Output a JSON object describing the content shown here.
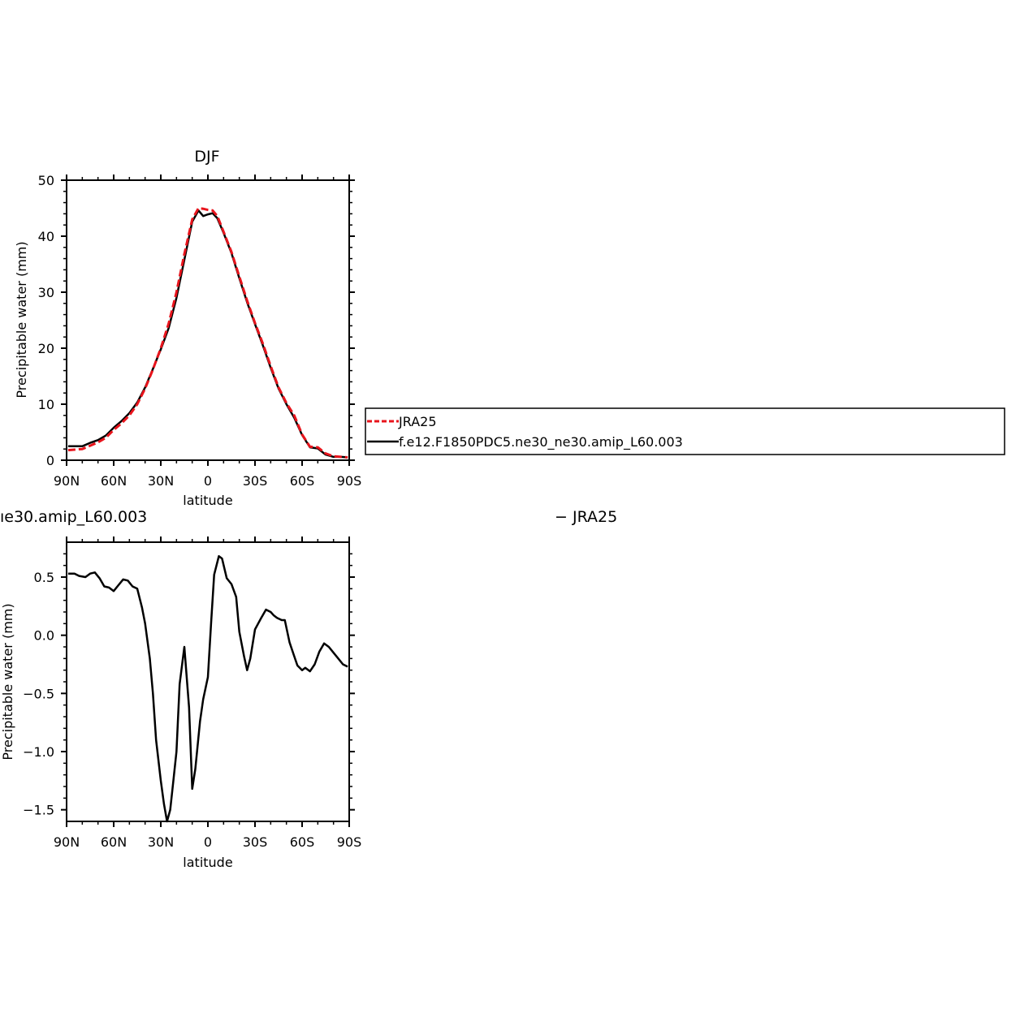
{
  "chart_data": [
    {
      "type": "line",
      "title": "DJF",
      "xlabel": "latitude",
      "ylabel": "Precipitable water (mm)",
      "xlim": [
        -90,
        90
      ],
      "ylim": [
        0,
        50
      ],
      "x_ticks": [
        {
          "value": -90,
          "label": "90N"
        },
        {
          "value": -60,
          "label": "60N"
        },
        {
          "value": -30,
          "label": "30N"
        },
        {
          "value": 0,
          "label": "0"
        },
        {
          "value": 30,
          "label": "30S"
        },
        {
          "value": 60,
          "label": "60S"
        },
        {
          "value": 90,
          "label": "90S"
        }
      ],
      "y_ticks": [
        {
          "value": 0,
          "label": "0"
        },
        {
          "value": 10,
          "label": "10"
        },
        {
          "value": 20,
          "label": "20"
        },
        {
          "value": 30,
          "label": "30"
        },
        {
          "value": 40,
          "label": "40"
        },
        {
          "value": 50,
          "label": "50"
        }
      ],
      "series": [
        {
          "name": "JRA25",
          "color": "#e8141c",
          "dash": true,
          "x": [
            -89,
            -80,
            -75,
            -70,
            -65,
            -60,
            -55,
            -50,
            -45,
            -40,
            -35,
            -30,
            -25,
            -20,
            -15,
            -10,
            -6,
            -3,
            0,
            3,
            6,
            10,
            15,
            20,
            25,
            30,
            35,
            40,
            45,
            50,
            55,
            60,
            65,
            70,
            75,
            80,
            85,
            89
          ],
          "y": [
            1.8,
            2.0,
            2.6,
            3.2,
            4.0,
            5.4,
            6.6,
            8.0,
            10.0,
            12.8,
            16.2,
            20.0,
            24.4,
            30.0,
            36.8,
            43.0,
            45.0,
            44.9,
            44.7,
            44.6,
            43.6,
            40.8,
            37.2,
            32.8,
            28.5,
            24.5,
            20.8,
            16.8,
            13.0,
            10.2,
            8.0,
            4.6,
            2.4,
            2.3,
            1.2,
            0.7,
            0.6,
            0.5
          ]
        },
        {
          "name": "f.e12.F1850PDC5.ne30_ne30.amip_L60.003",
          "color": "#000000",
          "dash": false,
          "x": [
            -89,
            -80,
            -75,
            -70,
            -65,
            -60,
            -55,
            -50,
            -45,
            -40,
            -35,
            -30,
            -25,
            -20,
            -15,
            -10,
            -6,
            -3,
            0,
            3,
            6,
            10,
            15,
            20,
            25,
            30,
            35,
            40,
            45,
            50,
            55,
            60,
            65,
            70,
            75,
            80,
            85,
            89
          ],
          "y": [
            2.5,
            2.5,
            3.1,
            3.6,
            4.4,
            5.8,
            7.0,
            8.4,
            10.3,
            13.0,
            16.3,
            19.8,
            23.6,
            29.0,
            35.8,
            42.6,
            44.6,
            43.6,
            43.9,
            44.1,
            43.2,
            40.6,
            37.0,
            32.5,
            28.2,
            24.3,
            20.5,
            16.5,
            12.8,
            10.0,
            7.6,
            4.5,
            2.3,
            2.1,
            1.0,
            0.6,
            0.6,
            0.5
          ]
        }
      ],
      "legend": {
        "position": "right",
        "entries": [
          "JRA25",
          "f.e12.F1850PDC5.ne30_ne30.amip_L60.003"
        ]
      }
    },
    {
      "type": "line",
      "title_left": "ıe30.amip_L60.003",
      "title_right": "− JRA25",
      "xlabel": "latitude",
      "ylabel": "Precipitable water (mm)",
      "xlim": [
        -90,
        90
      ],
      "ylim": [
        -1.6,
        0.8
      ],
      "x_ticks": [
        {
          "value": -90,
          "label": "90N"
        },
        {
          "value": -60,
          "label": "60N"
        },
        {
          "value": -30,
          "label": "30N"
        },
        {
          "value": 0,
          "label": "0"
        },
        {
          "value": 30,
          "label": "30S"
        },
        {
          "value": 60,
          "label": "60S"
        },
        {
          "value": 90,
          "label": "90S"
        }
      ],
      "y_ticks": [
        {
          "value": -1.5,
          "label": "−1.5"
        },
        {
          "value": -1.0,
          "label": "−1.0"
        },
        {
          "value": -0.5,
          "label": "−0.5"
        },
        {
          "value": 0.0,
          "label": "0.0"
        },
        {
          "value": 0.5,
          "label": "0.5"
        }
      ],
      "series": [
        {
          "color": "#000000",
          "x": [
            -89,
            -85,
            -82,
            -78,
            -75,
            -72,
            -69,
            -66,
            -63,
            -60,
            -57,
            -54,
            -51,
            -48,
            -45,
            -42,
            -40,
            -37,
            -35,
            -33,
            -30,
            -28,
            -26,
            -24,
            -22,
            -20,
            -18,
            -15,
            -12,
            -10,
            -8,
            -5,
            -3,
            0,
            2,
            4,
            7,
            9,
            12,
            15,
            18,
            20,
            23,
            25,
            27,
            30,
            34,
            37,
            40,
            42,
            44,
            47,
            49,
            52,
            55,
            57,
            60,
            62,
            65,
            68,
            71,
            74,
            77,
            80,
            83,
            86,
            89
          ],
          "y": [
            0.53,
            0.53,
            0.51,
            0.5,
            0.53,
            0.54,
            0.49,
            0.42,
            0.41,
            0.38,
            0.43,
            0.48,
            0.47,
            0.42,
            0.4,
            0.24,
            0.1,
            -0.2,
            -0.5,
            -0.9,
            -1.25,
            -1.45,
            -1.6,
            -1.5,
            -1.25,
            -1.0,
            -0.42,
            -0.1,
            -0.62,
            -1.32,
            -1.15,
            -0.74,
            -0.55,
            -0.36,
            0.1,
            0.52,
            0.68,
            0.66,
            0.49,
            0.44,
            0.33,
            0.03,
            -0.18,
            -0.3,
            -0.2,
            0.05,
            0.15,
            0.22,
            0.2,
            0.17,
            0.15,
            0.13,
            0.13,
            -0.06,
            -0.18,
            -0.26,
            -0.3,
            -0.28,
            -0.31,
            -0.25,
            -0.14,
            -0.07,
            -0.1,
            -0.15,
            -0.2,
            -0.25,
            -0.27
          ]
        }
      ]
    }
  ]
}
